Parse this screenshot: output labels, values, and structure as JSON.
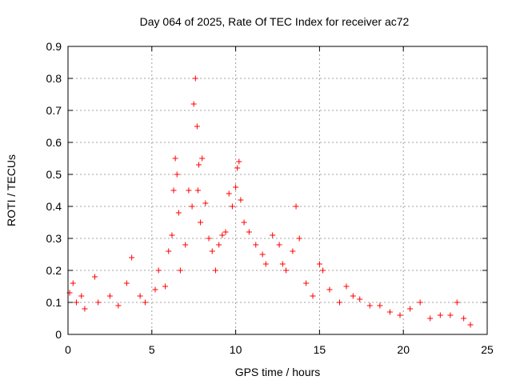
{
  "chart_data": {
    "type": "scatter",
    "title": "Day 064 of 2025, Rate Of TEC Index for receiver ac72",
    "xlabel": "GPS time / hours",
    "ylabel": "ROTI / TECUs",
    "xlim": [
      0,
      25
    ],
    "ylim": [
      0,
      0.9
    ],
    "xticks": [
      "0",
      "5",
      "10",
      "15",
      "20",
      "25"
    ],
    "yticks": [
      "0",
      "0.1",
      "0.2",
      "0.3",
      "0.4",
      "0.5",
      "0.6",
      "0.7",
      "0.8",
      "0.9"
    ],
    "grid": true,
    "marker": "plus",
    "color": "#ff0000",
    "series": [
      {
        "x": [
          0.1,
          0.3,
          0.5,
          0.8,
          1.0,
          1.6,
          1.8,
          2.5,
          3.0,
          3.5,
          3.8,
          4.3,
          4.6,
          5.2,
          5.4,
          5.8,
          6.0,
          6.2,
          6.3,
          6.4,
          6.5,
          6.6,
          6.7,
          7.0,
          7.2,
          7.4,
          7.5,
          7.6,
          7.7,
          7.75,
          7.8,
          7.9,
          8.0,
          8.2,
          8.4,
          8.6,
          8.8,
          9.0,
          9.2,
          9.4,
          9.6,
          9.8,
          10.0,
          10.1,
          10.2,
          10.3,
          10.5,
          10.8,
          11.2,
          11.6,
          11.8,
          12.2,
          12.6,
          12.8,
          13.0,
          13.4,
          13.6,
          13.8,
          14.2,
          14.6,
          15.0,
          15.2,
          15.6,
          16.2,
          16.6,
          17.0,
          17.4,
          18.0,
          18.6,
          19.2,
          19.8,
          20.4,
          21.0,
          21.6,
          22.2,
          22.8,
          23.2,
          23.6,
          24.0
        ],
        "y": [
          0.13,
          0.16,
          0.1,
          0.12,
          0.08,
          0.18,
          0.1,
          0.12,
          0.09,
          0.16,
          0.24,
          0.12,
          0.1,
          0.14,
          0.2,
          0.15,
          0.26,
          0.31,
          0.45,
          0.55,
          0.5,
          0.38,
          0.2,
          0.28,
          0.45,
          0.4,
          0.72,
          0.8,
          0.65,
          0.45,
          0.53,
          0.35,
          0.55,
          0.41,
          0.3,
          0.26,
          0.2,
          0.28,
          0.31,
          0.32,
          0.44,
          0.4,
          0.46,
          0.52,
          0.54,
          0.42,
          0.35,
          0.32,
          0.28,
          0.25,
          0.22,
          0.31,
          0.28,
          0.22,
          0.2,
          0.26,
          0.4,
          0.3,
          0.16,
          0.12,
          0.22,
          0.2,
          0.14,
          0.1,
          0.15,
          0.12,
          0.11,
          0.09,
          0.09,
          0.07,
          0.06,
          0.08,
          0.1,
          0.05,
          0.06,
          0.06,
          0.1,
          0.05,
          0.03
        ]
      }
    ]
  }
}
